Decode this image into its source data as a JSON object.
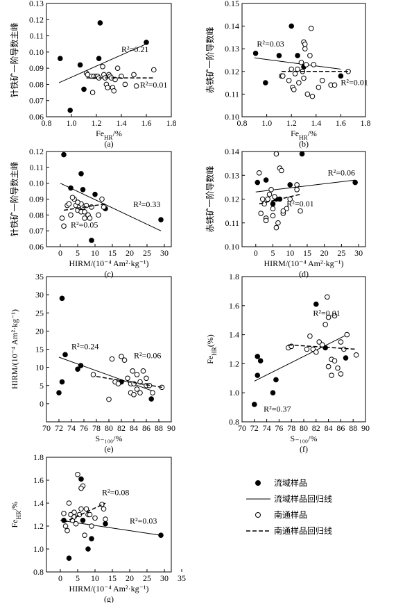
{
  "chart_data": [
    {
      "type": "scatter",
      "caption": "(a)",
      "xlabel": [
        {
          "text": "Fe"
        },
        {
          "text": "HR",
          "sub": true
        },
        {
          "text": "/%"
        }
      ],
      "ylabel": "针铁矿一阶导数主峰",
      "xlim": [
        0.8,
        1.8
      ],
      "ylim": [
        0.06,
        0.13
      ],
      "xticks": [
        0.8,
        {
          "value": 1,
          "label": "1.0"
        },
        1.2,
        1.4,
        1.6,
        1.8
      ],
      "yticks": [
        0.06,
        0.07,
        0.08,
        0.09,
        {
          "value": 0.1,
          "label": "0.10"
        },
        0.11,
        0.12,
        0.13
      ],
      "series": [
        {
          "marker": "filled",
          "color": "#000",
          "x": [
            0.91,
            0.99,
            1.07,
            1.1,
            1.22,
            1.23,
            1.6
          ],
          "values": [
            0.096,
            0.064,
            0.092,
            0.077,
            0.096,
            0.118,
            0.106
          ]
        },
        {
          "style": "solid",
          "color": "#000",
          "label": "R²=0.21",
          "x": [
            0.9,
            1.6
          ],
          "values": [
            0.081,
            0.105
          ]
        },
        {
          "marker": "open",
          "color": "#000",
          "x": [
            1.12,
            1.13,
            1.16,
            1.18,
            1.2,
            1.21,
            1.22,
            1.25,
            1.26,
            1.27,
            1.28,
            1.29,
            1.3,
            1.31,
            1.33,
            1.34,
            1.35,
            1.37,
            1.4,
            1.43,
            1.5,
            1.52,
            1.66,
            1.17,
            1.32
          ],
          "values": [
            0.087,
            0.086,
            0.085,
            0.085,
            0.085,
            0.085,
            0.084,
            0.091,
            0.086,
            0.084,
            0.08,
            0.078,
            0.086,
            0.085,
            0.078,
            0.076,
            0.083,
            0.09,
            0.085,
            0.08,
            0.086,
            0.079,
            0.089,
            0.075,
            0.084
          ]
        },
        {
          "style": "dashed",
          "color": "#000",
          "label": "R²=0.01",
          "x": [
            1.12,
            1.66
          ],
          "values": [
            0.084,
            0.084
          ]
        }
      ]
    },
    {
      "type": "scatter",
      "caption": "(b)",
      "xlabel": [
        {
          "text": "Fe"
        },
        {
          "text": "HR",
          "sub": true
        },
        {
          "text": "/%"
        }
      ],
      "ylabel": "赤铁矿一阶导数峰",
      "xlim": [
        0.8,
        1.8
      ],
      "ylim": [
        0.1,
        0.15
      ],
      "xticks": [
        0.8,
        {
          "value": 1,
          "label": "1.0"
        },
        1.2,
        1.4,
        1.6,
        1.8
      ],
      "yticks": [
        {
          "value": 0.1,
          "label": "0.10"
        },
        0.11,
        0.12,
        0.13,
        0.14,
        0.15
      ],
      "series": [
        {
          "marker": "filled",
          "color": "#000",
          "x": [
            0.91,
            0.99,
            1.1,
            1.2,
            1.25,
            1.3,
            1.6
          ],
          "values": [
            0.128,
            0.115,
            0.127,
            0.14,
            0.127,
            0.122,
            0.118
          ]
        },
        {
          "style": "solid",
          "color": "#000",
          "label": "R²=0.03",
          "x": [
            0.9,
            1.6
          ],
          "values": [
            0.126,
            0.121
          ]
        },
        {
          "marker": "open",
          "color": "#000",
          "x": [
            1.12,
            1.13,
            1.18,
            1.2,
            1.21,
            1.22,
            1.23,
            1.25,
            1.26,
            1.28,
            1.29,
            1.3,
            1.31,
            1.31,
            1.32,
            1.33,
            1.35,
            1.36,
            1.37,
            1.38,
            1.42,
            1.45,
            1.52,
            1.55,
            1.66,
            1.3
          ],
          "values": [
            0.118,
            0.118,
            0.116,
            0.121,
            0.113,
            0.112,
            0.119,
            0.121,
            0.115,
            0.124,
            0.12,
            0.133,
            0.132,
            0.13,
            0.123,
            0.11,
            0.127,
            0.139,
            0.109,
            0.123,
            0.113,
            0.116,
            0.114,
            0.114,
            0.12,
            0.117
          ]
        },
        {
          "style": "dashed",
          "color": "#000",
          "label": "R²=0.01",
          "x": [
            1.12,
            1.66
          ],
          "values": [
            0.12,
            0.12
          ]
        }
      ]
    },
    {
      "type": "scatter",
      "caption": "(c)",
      "xlabel": "HIRM/(10⁻⁴ Am²·kg⁻¹)",
      "ylabel": "针铁矿一阶导数主峰",
      "xlim": [
        -4,
        32
      ],
      "ylim": [
        0.06,
        0.12
      ],
      "xticks": [
        0,
        5,
        10,
        15,
        20,
        25,
        30
      ],
      "yticks": [
        0.06,
        0.07,
        0.08,
        0.09,
        {
          "value": 0.1,
          "label": "0.10"
        },
        0.11,
        0.12
      ],
      "series": [
        {
          "marker": "filled",
          "color": "#000",
          "x": [
            1,
            3,
            6,
            6.5,
            9,
            10,
            13,
            29
          ],
          "values": [
            0.118,
            0.097,
            0.106,
            0.096,
            0.064,
            0.093,
            0.084,
            0.077
          ]
        },
        {
          "style": "solid",
          "color": "#000",
          "label": "R²=0.33",
          "x": [
            0,
            29
          ],
          "values": [
            0.1,
            0.07
          ]
        },
        {
          "marker": "open",
          "color": "#000",
          "x": [
            0.5,
            1,
            2,
            2.5,
            3,
            4,
            4.5,
            5,
            5.5,
            6,
            6.5,
            7,
            7.5,
            8,
            8.5,
            9,
            11,
            12,
            12.5,
            3.5,
            6,
            7,
            5
          ],
          "values": [
            0.078,
            0.073,
            0.086,
            0.087,
            0.08,
            0.09,
            0.086,
            0.083,
            0.085,
            0.082,
            0.085,
            0.078,
            0.086,
            0.08,
            0.078,
            0.085,
            0.08,
            0.09,
            0.085,
            0.091,
            0.087,
            0.082,
            0.088
          ]
        },
        {
          "style": "dashed",
          "color": "#000",
          "label": "R²=0.05",
          "x": [
            1,
            13
          ],
          "values": [
            0.083,
            0.087
          ]
        }
      ]
    },
    {
      "type": "scatter",
      "caption": "(d)",
      "xlabel": "HIRM/(10⁻⁴ Am²·kg⁻¹)",
      "ylabel": "赤铁矿一阶导数峰",
      "xlim": [
        -4,
        32
      ],
      "ylim": [
        0.1,
        0.14
      ],
      "xticks": [
        0,
        5,
        10,
        15,
        20,
        25,
        30
      ],
      "yticks": [
        {
          "value": 0.1,
          "label": "0.10"
        },
        0.11,
        0.12,
        0.13,
        0.14
      ],
      "series": [
        {
          "marker": "filled",
          "color": "#000",
          "x": [
            0.5,
            3,
            7,
            13.5,
            10,
            29,
            6,
            5
          ],
          "values": [
            0.127,
            0.128,
            0.12,
            0.139,
            0.126,
            0.127,
            0.12,
            0.118
          ]
        },
        {
          "style": "solid",
          "color": "#000",
          "label": "R²=0.06",
          "x": [
            0,
            29
          ],
          "values": [
            0.123,
            0.128
          ]
        },
        {
          "marker": "open",
          "color": "#000",
          "x": [
            1,
            1.5,
            2,
            2.5,
            3,
            3.5,
            4,
            4.5,
            5,
            5.5,
            6,
            6.5,
            7,
            7.5,
            8,
            9,
            10,
            12,
            12,
            13,
            3,
            5,
            6,
            8
          ],
          "values": [
            0.131,
            0.114,
            0.12,
            0.118,
            0.112,
            0.12,
            0.122,
            0.124,
            0.116,
            0.121,
            0.139,
            0.11,
            0.133,
            0.132,
            0.114,
            0.116,
            0.12,
            0.124,
            0.126,
            0.115,
            0.111,
            0.113,
            0.108,
            0.115
          ]
        },
        {
          "style": "dashed",
          "color": "#000",
          "label": "R²=0.01",
          "x": [
            1,
            13
          ],
          "values": [
            0.118,
            0.122
          ]
        }
      ]
    },
    {
      "type": "scatter",
      "caption": "(e)",
      "xlabel": "S₋₁₀₀/%",
      "ylabel": "HIRM/(10⁻⁴ Am²·kg⁻¹)",
      "xlim": [
        70,
        90
      ],
      "ylim": [
        -5,
        35
      ],
      "xticks": [
        70,
        72,
        74,
        76,
        78,
        80,
        82,
        84,
        86,
        88,
        90
      ],
      "yticks": [
        0,
        5,
        10,
        15,
        20,
        25,
        30,
        35
      ],
      "series": [
        {
          "marker": "filled",
          "color": "#000",
          "x": [
            72,
            72.5,
            72.5,
            73,
            75,
            75.5,
            82,
            86.8
          ],
          "values": [
            3,
            29,
            6,
            13.5,
            9.5,
            10.5,
            6,
            1.3
          ]
        },
        {
          "style": "solid",
          "color": "#000",
          "label": "R²=0.24",
          "x": [
            72,
            87
          ],
          "values": [
            12.8,
            3.5
          ]
        },
        {
          "marker": "open",
          "color": "#000",
          "x": [
            77.5,
            80,
            80.5,
            81,
            81.5,
            82,
            82.5,
            83,
            83.5,
            83.5,
            83.8,
            84,
            84,
            84.5,
            85,
            85,
            85.5,
            86,
            86,
            86.5,
            87,
            88.5,
            84.5
          ],
          "values": [
            8,
            1.2,
            12.3,
            6,
            5.5,
            13,
            12,
            7,
            5.5,
            3,
            9,
            2.5,
            5.5,
            4,
            6,
            3,
            9,
            7,
            5,
            5,
            3,
            4.5,
            8
          ]
        },
        {
          "style": "dashed",
          "color": "#000",
          "label": "R²=0.06",
          "x": [
            78,
            88.5
          ],
          "values": [
            7.5,
            4.5
          ]
        }
      ]
    },
    {
      "type": "scatter",
      "caption": "(f)",
      "xlabel": "S₋₁₀₀/%",
      "ylabel": [
        {
          "text": "Fe"
        },
        {
          "text": "HR",
          "sub": true
        },
        {
          "text": "(%)"
        }
      ],
      "xlim": [
        70,
        90
      ],
      "ylim": [
        0.8,
        1.8
      ],
      "xticks": [
        70,
        72,
        74,
        76,
        78,
        80,
        82,
        84,
        86,
        88,
        90
      ],
      "yticks": [
        0.8,
        {
          "value": 1,
          "label": "1.0"
        },
        1.2,
        1.4,
        1.6,
        1.8
      ],
      "series": [
        {
          "marker": "filled",
          "color": "#000",
          "x": [
            72,
            72.5,
            72.5,
            73,
            75,
            75.5,
            82,
            83.5,
            86.8
          ],
          "values": [
            0.92,
            1.12,
            1.25,
            1.22,
            1.0,
            1.09,
            1.61,
            1.31,
            1.24
          ]
        },
        {
          "style": "solid",
          "color": "#000",
          "label": "R²=0.37",
          "x": [
            72,
            87
          ],
          "values": [
            1.08,
            1.4
          ]
        },
        {
          "marker": "open",
          "color": "#000",
          "x": [
            77.5,
            78,
            80.5,
            81,
            81.5,
            82,
            82.5,
            83,
            83.5,
            83.8,
            84,
            84,
            84.5,
            84.5,
            85,
            85,
            85.5,
            86,
            86,
            86.5,
            87,
            88.5
          ],
          "values": [
            1.31,
            1.32,
            1.3,
            1.39,
            1.3,
            1.28,
            1.35,
            1.33,
            1.47,
            1.66,
            1.52,
            1.18,
            1.12,
            1.23,
            1.22,
            1.53,
            1.17,
            1.35,
            1.13,
            1.3,
            1.4,
            1.26
          ]
        },
        {
          "style": "dashed",
          "color": "#000",
          "label": "R²=0.01",
          "x": [
            77.5,
            88.5
          ],
          "values": [
            1.33,
            1.3
          ]
        }
      ]
    },
    {
      "type": "scatter",
      "caption": "(g)",
      "xlabel": "HIRM/(10⁻⁴ Am²·kg⁻¹)",
      "ylabel": [
        {
          "text": "Fe"
        },
        {
          "text": "HR",
          "sub": true
        },
        {
          "text": "/%"
        }
      ],
      "xlim": [
        -4,
        32
      ],
      "ylim": [
        0.8,
        1.8
      ],
      "xticks": [
        0,
        5,
        10,
        15,
        20,
        25,
        30,
        35
      ],
      "yticks": [
        0.8,
        {
          "value": 1,
          "label": "1.0"
        },
        1.2,
        1.4,
        1.6,
        1.8
      ],
      "series": [
        {
          "name": "流域样品",
          "marker": "filled",
          "color": "#000",
          "x": [
            1,
            2.5,
            6,
            6.5,
            8,
            9,
            13,
            29
          ],
          "values": [
            1.25,
            0.92,
            1.61,
            1.25,
            1.0,
            1.09,
            1.22,
            1.12
          ]
        },
        {
          "name": "流域样品回归线",
          "style": "solid",
          "color": "#000",
          "label": "R²=0.03",
          "x": [
            0,
            29
          ],
          "values": [
            1.25,
            1.12
          ]
        },
        {
          "name": "南通样品",
          "marker": "open",
          "color": "#000",
          "x": [
            1,
            1.5,
            2,
            2.5,
            3,
            3.5,
            4,
            4.5,
            5,
            5.5,
            6,
            6.5,
            7,
            7.5,
            8,
            8.5,
            12,
            12.5,
            13,
            9,
            4,
            6,
            10
          ],
          "values": [
            1.31,
            1.2,
            1.16,
            1.4,
            1.3,
            1.25,
            1.28,
            1.22,
            1.65,
            1.3,
            1.35,
            1.55,
            1.12,
            1.35,
            1.3,
            1.3,
            1.39,
            1.35,
            1.26,
            1.2,
            1.32,
            1.53,
            1.27
          ]
        },
        {
          "name": "南通样品回归线",
          "style": "dashed",
          "color": "#000",
          "label": "R²=0.08",
          "x": [
            1,
            13
          ],
          "values": [
            1.23,
            1.4
          ]
        }
      ]
    }
  ]
}
